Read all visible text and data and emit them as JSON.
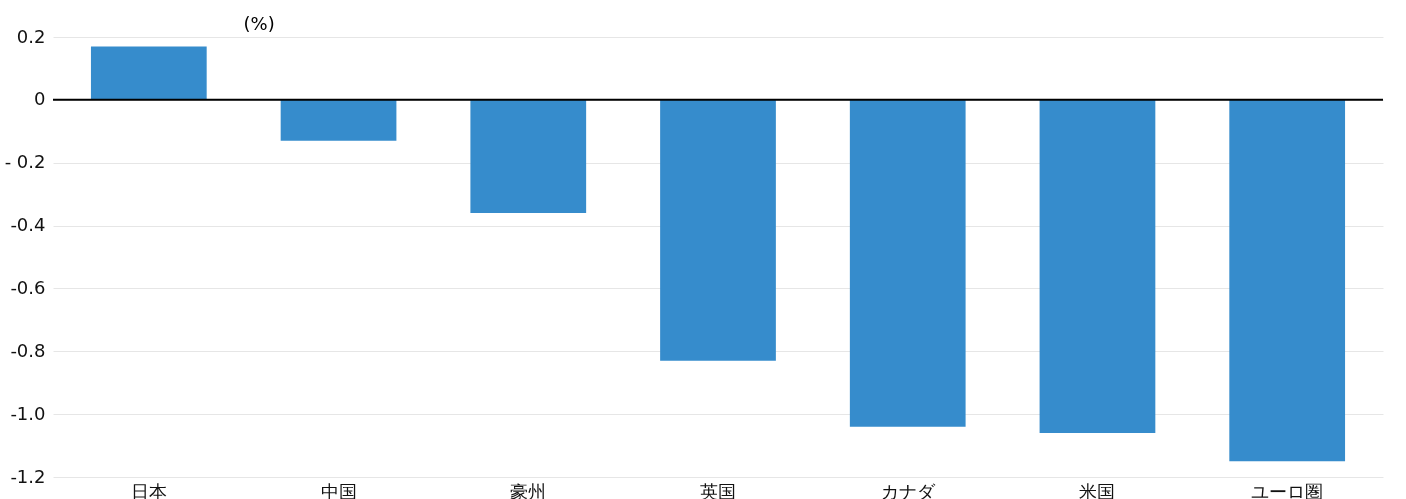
{
  "chart_data": {
    "type": "bar",
    "ylabel": "(%)",
    "categories": [
      "日本",
      "中国",
      "豪州",
      "英国",
      "カナダ",
      "米国",
      "ユーロ圏"
    ],
    "values": [
      0.17,
      -0.13,
      -0.36,
      -0.83,
      -1.04,
      -1.06,
      -1.15
    ],
    "color": "#368ccc",
    "ylim": [
      -1.2,
      0.2
    ],
    "yticks": [
      0.2,
      0,
      {
        "value": -0.2,
        "label": "- 0.2"
      },
      -0.4,
      -0.6,
      -0.8,
      {
        "value": -1.0,
        "label": "-1.0"
      },
      -1.2
    ],
    "ref_lines": [
      {
        "axis": "y",
        "value": 0,
        "color": "#000000"
      }
    ],
    "grid": "y"
  }
}
